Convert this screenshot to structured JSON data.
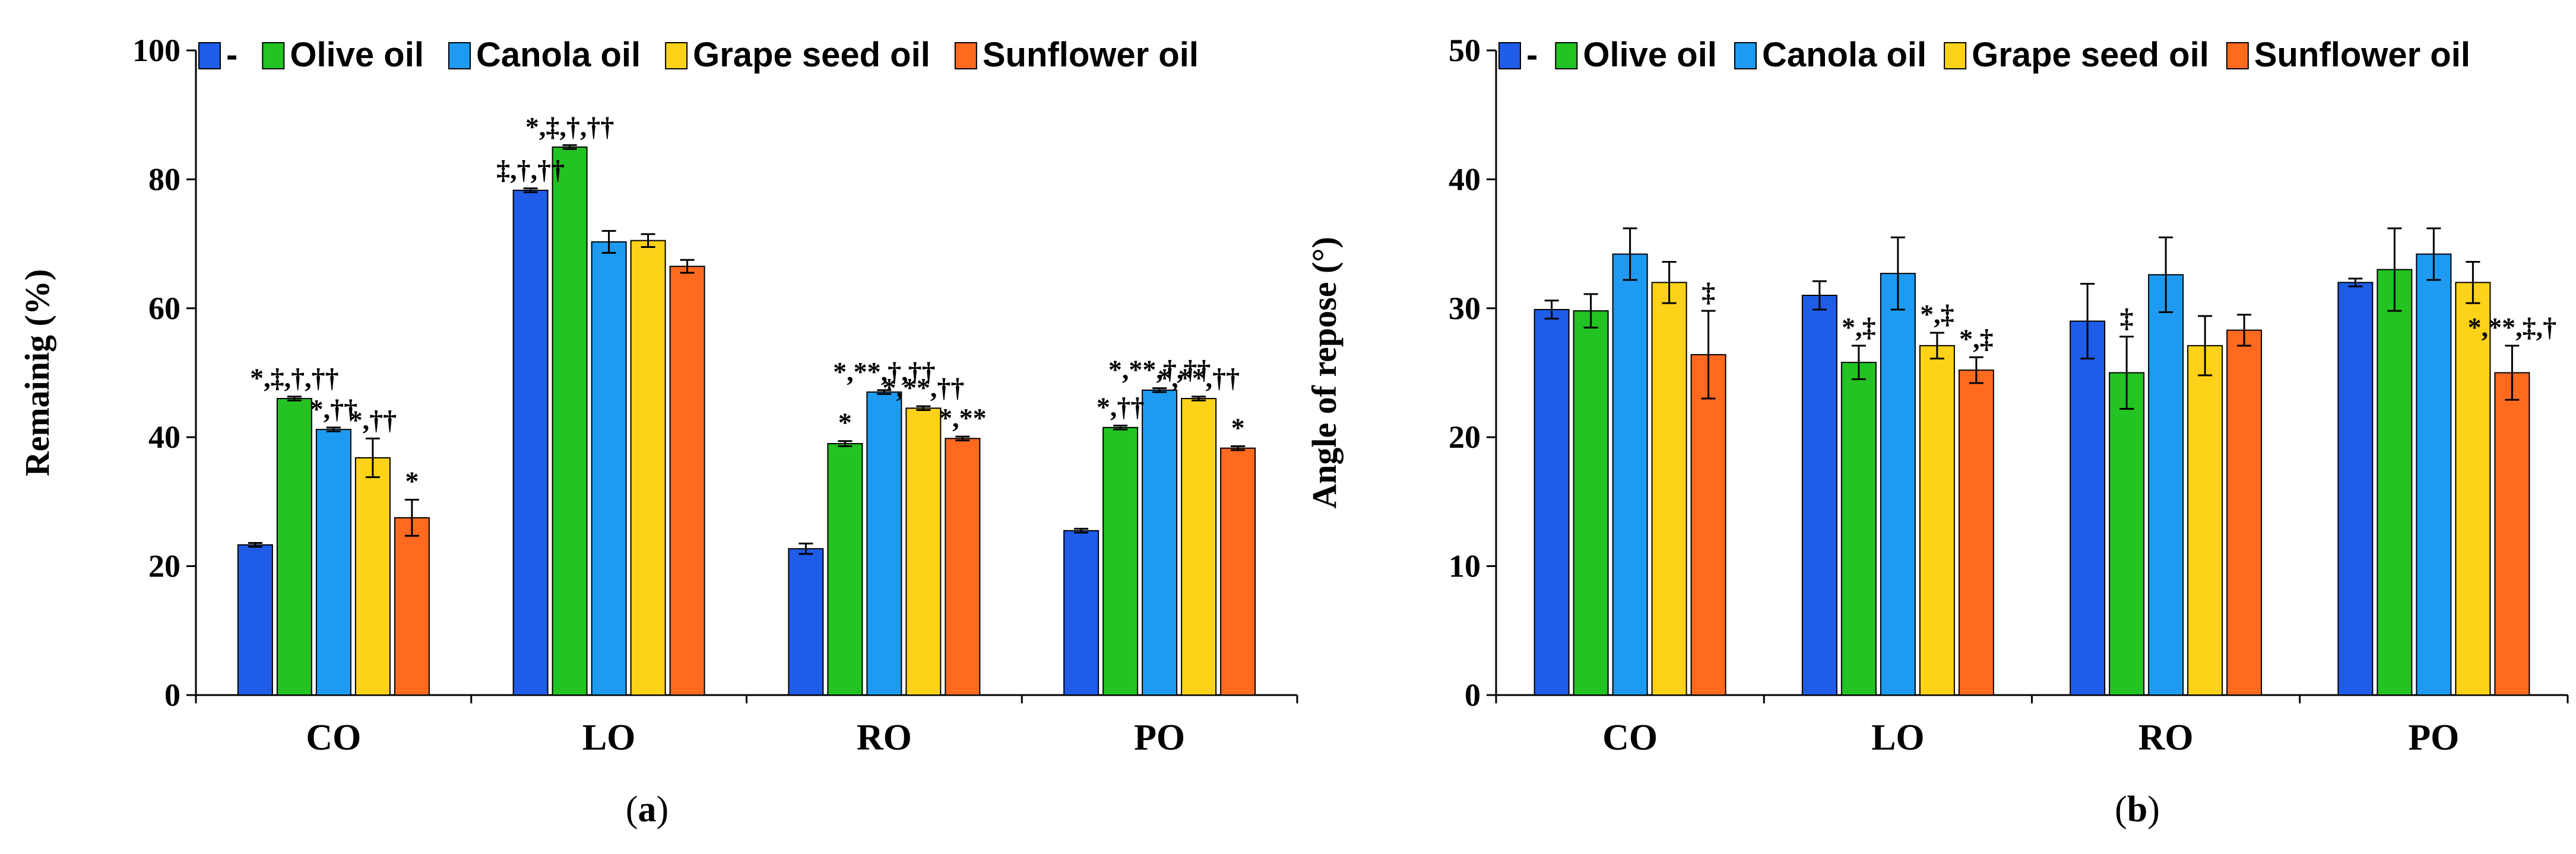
{
  "chart_data": [
    {
      "panel": "(a)",
      "caption": "a",
      "type": "bar",
      "ylabel": "Remainig  (%)",
      "xlabel": "",
      "ylim": [
        0,
        100
      ],
      "yticks": [
        0,
        20,
        40,
        60,
        80,
        100
      ],
      "grid": false,
      "legend_position": "top",
      "categories": [
        "CO",
        "LO",
        "RO",
        "PO"
      ],
      "series": [
        {
          "name": "-",
          "color": "#1f5ce8",
          "values": [
            23.3,
            78.3,
            22.7,
            25.5
          ],
          "errors": [
            0.3,
            0.3,
            0.8,
            0.3
          ]
        },
        {
          "name": "Olive oil",
          "color": "#22c322",
          "values": [
            46.0,
            85.0,
            39.0,
            41.5
          ],
          "errors": [
            0.3,
            0.3,
            0.4,
            0.3
          ]
        },
        {
          "name": "Canola oil",
          "color": "#1e9bf0",
          "values": [
            41.2,
            70.3,
            47.0,
            47.3
          ],
          "errors": [
            0.3,
            1.7,
            0.3,
            0.3
          ]
        },
        {
          "name": "Grape seed oil",
          "color": "#ffd21a",
          "values": [
            36.8,
            70.5,
            44.5,
            46.0
          ],
          "errors": [
            3.0,
            1.0,
            0.3,
            0.3
          ]
        },
        {
          "name": "Sunflower oil",
          "color": "#ff6a1f",
          "values": [
            27.5,
            66.5,
            39.8,
            38.3
          ],
          "errors": [
            2.8,
            1.0,
            0.3,
            0.3
          ]
        }
      ],
      "annotations": [
        {
          "category": 0,
          "series": 1,
          "text": "*,‡,†,††"
        },
        {
          "category": 0,
          "series": 2,
          "text": "*,††"
        },
        {
          "category": 0,
          "series": 3,
          "text": "*,††"
        },
        {
          "category": 0,
          "series": 4,
          "text": "*"
        },
        {
          "category": 1,
          "series": 0,
          "text": "‡,†,††"
        },
        {
          "category": 1,
          "series": 1,
          "text": "*,‡,†,††"
        },
        {
          "category": 2,
          "series": 1,
          "text": "*"
        },
        {
          "category": 2,
          "series": 2,
          "text": "*,**,†,††"
        },
        {
          "category": 2,
          "series": 3,
          "text": "*,**,††"
        },
        {
          "category": 2,
          "series": 4,
          "text": "*,**"
        },
        {
          "category": 3,
          "series": 1,
          "text": "*,††"
        },
        {
          "category": 3,
          "series": 2,
          "text": "*,**,†,††"
        },
        {
          "category": 3,
          "series": 3,
          "text": "*,**,††"
        },
        {
          "category": 3,
          "series": 4,
          "text": "*"
        }
      ]
    },
    {
      "panel": "(b)",
      "caption": "b",
      "type": "bar",
      "ylabel": "Angle of repose (°)",
      "xlabel": "",
      "ylim": [
        0,
        50
      ],
      "yticks": [
        0,
        10,
        20,
        30,
        40,
        50
      ],
      "grid": false,
      "legend_position": "top",
      "categories": [
        "CO",
        "LO",
        "RO",
        "PO"
      ],
      "series": [
        {
          "name": "-",
          "color": "#1f5ce8",
          "values": [
            29.9,
            31.0,
            29.0,
            32.0
          ],
          "errors": [
            0.7,
            1.1,
            2.9,
            0.3
          ]
        },
        {
          "name": "Olive oil",
          "color": "#22c322",
          "values": [
            29.8,
            25.8,
            25.0,
            33.0
          ],
          "errors": [
            1.3,
            1.3,
            2.8,
            3.2
          ]
        },
        {
          "name": "Canola oil",
          "color": "#1e9bf0",
          "values": [
            34.2,
            32.7,
            32.6,
            34.2
          ],
          "errors": [
            2.0,
            2.8,
            2.9,
            2.0
          ]
        },
        {
          "name": "Grape seed oil",
          "color": "#ffd21a",
          "values": [
            32.0,
            27.1,
            27.1,
            32.0
          ],
          "errors": [
            1.6,
            1.0,
            2.3,
            1.6
          ]
        },
        {
          "name": "Sunflower oil",
          "color": "#ff6a1f",
          "values": [
            26.4,
            25.2,
            28.3,
            25.0
          ],
          "errors": [
            3.4,
            1.0,
            1.2,
            2.1
          ]
        }
      ],
      "annotations": [
        {
          "category": 0,
          "series": 4,
          "text": "‡"
        },
        {
          "category": 1,
          "series": 1,
          "text": "*,‡"
        },
        {
          "category": 1,
          "series": 3,
          "text": "*,‡"
        },
        {
          "category": 1,
          "series": 4,
          "text": "*,‡"
        },
        {
          "category": 2,
          "series": 1,
          "text": "‡"
        },
        {
          "category": 3,
          "series": 4,
          "text": "*,**,‡,†"
        }
      ]
    }
  ]
}
